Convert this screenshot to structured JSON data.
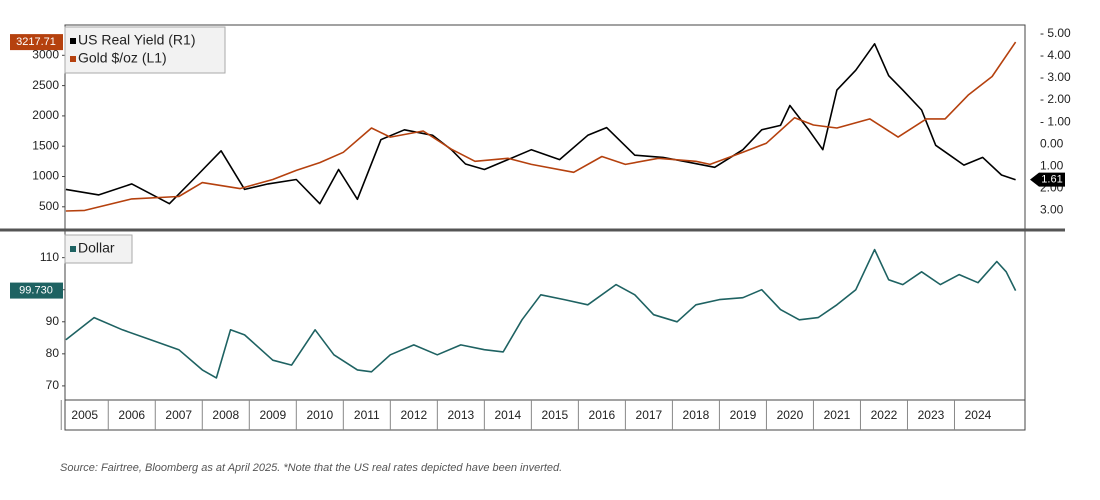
{
  "chart_data": [
    {
      "type": "line",
      "xlim": [
        2005.08,
        2025.5
      ],
      "ylim": [
        150,
        3500
      ],
      "yticks": [
        500,
        1000,
        1500,
        2000,
        2500,
        3000
      ],
      "y2lim": [
        3.8,
        -5.4
      ],
      "y2ticks": [
        {
          "value": -5,
          "label": "- 5.00"
        },
        {
          "value": -4,
          "label": "- 4.00"
        },
        {
          "value": -3,
          "label": "- 3.00"
        },
        {
          "value": -2,
          "label": "- 2.00"
        },
        {
          "value": -1,
          "label": "- 1.00"
        },
        {
          "value": 0,
          "label": "0.00"
        },
        {
          "value": 1,
          "label": "1.00"
        },
        {
          "value": 2,
          "label": "2.00"
        },
        {
          "value": 3,
          "label": "3.00"
        }
      ],
      "series": [
        {
          "name": "US Real Yield (R1)",
          "color": "#000000",
          "axis": "y2",
          "x": [
            2005.1,
            2005.8,
            2006.5,
            2007.3,
            2007.9,
            2008.4,
            2008.9,
            2009.4,
            2010.0,
            2010.5,
            2010.9,
            2011.3,
            2011.8,
            2012.3,
            2012.9,
            2013.3,
            2013.6,
            2014.0,
            2014.5,
            2015.0,
            2015.6,
            2016.2,
            2016.6,
            2017.2,
            2017.8,
            2018.3,
            2018.9,
            2019.5,
            2019.9,
            2020.3,
            2020.5,
            2020.9,
            2021.2,
            2021.5,
            2021.9,
            2022.3,
            2022.6,
            2022.9,
            2023.3,
            2023.6,
            2023.9,
            2024.2,
            2024.6,
            2025.0,
            2025.3
          ],
          "values": [
            2.05,
            2.3,
            1.8,
            2.7,
            1.4,
            0.3,
            2.05,
            1.8,
            1.6,
            2.7,
            1.15,
            2.5,
            -0.2,
            -0.65,
            -0.4,
            0.25,
            0.9,
            1.15,
            0.7,
            0.25,
            0.7,
            -0.4,
            -0.75,
            0.5,
            0.6,
            0.8,
            1.05,
            0.25,
            -0.65,
            -0.85,
            -1.75,
            -0.65,
            0.25,
            -2.45,
            -3.35,
            -4.55,
            -3.1,
            -2.45,
            -1.55,
            0.05,
            0.5,
            0.95,
            0.6,
            1.4,
            1.61
          ]
        },
        {
          "name": "Gold $/oz (L1)",
          "color": "#b5410e",
          "x": [
            2005.1,
            2005.5,
            2006.5,
            2007.5,
            2008.0,
            2008.8,
            2009.5,
            2010.0,
            2010.5,
            2011.0,
            2011.6,
            2012.0,
            2012.7,
            2013.3,
            2013.8,
            2014.5,
            2015.0,
            2015.9,
            2016.5,
            2017.0,
            2017.7,
            2018.5,
            2018.8,
            2019.5,
            2020.0,
            2020.6,
            2021.0,
            2021.5,
            2022.2,
            2022.8,
            2023.4,
            2023.8,
            2024.3,
            2024.8,
            2025.3
          ],
          "values": [
            430,
            440,
            630,
            670,
            900,
            800,
            950,
            1100,
            1230,
            1400,
            1800,
            1650,
            1750,
            1450,
            1250,
            1300,
            1200,
            1070,
            1330,
            1200,
            1300,
            1250,
            1200,
            1400,
            1550,
            1970,
            1850,
            1800,
            1950,
            1650,
            1950,
            1950,
            2350,
            2650,
            3217.71
          ]
        }
      ]
    },
    {
      "type": "line",
      "xlim": [
        2005.08,
        2025.5
      ],
      "xticks": [
        2005,
        2006,
        2007,
        2008,
        2009,
        2010,
        2011,
        2012,
        2013,
        2014,
        2015,
        2016,
        2017,
        2018,
        2019,
        2020,
        2021,
        2022,
        2023,
        2024
      ],
      "ylim": [
        65.6,
        118
      ],
      "yticks": [
        70,
        80,
        90,
        100,
        110
      ],
      "series": [
        {
          "name": "Dollar",
          "color": "#1e6262",
          "x": [
            2005.1,
            2005.7,
            2006.3,
            2006.9,
            2007.5,
            2008.0,
            2008.3,
            2008.6,
            2008.9,
            2009.5,
            2009.9,
            2010.4,
            2010.8,
            2011.3,
            2011.6,
            2012.0,
            2012.5,
            2013.0,
            2013.5,
            2014.0,
            2014.4,
            2014.8,
            2015.2,
            2015.7,
            2016.2,
            2016.8,
            2017.2,
            2017.6,
            2018.1,
            2018.5,
            2019.0,
            2019.5,
            2019.9,
            2020.3,
            2020.7,
            2021.1,
            2021.5,
            2021.9,
            2022.3,
            2022.6,
            2022.9,
            2023.3,
            2023.7,
            2024.1,
            2024.5,
            2024.9,
            2025.1,
            2025.3
          ],
          "values": [
            84.4,
            91.3,
            87.5,
            84.4,
            81.3,
            75,
            72.5,
            87.5,
            85.9,
            78,
            76.5,
            87.5,
            79.7,
            75,
            74.4,
            79.7,
            82.8,
            79.7,
            82.8,
            81.3,
            80.6,
            90.6,
            98.4,
            96.9,
            95.3,
            101.6,
            98.4,
            92.2,
            90,
            95.3,
            96.9,
            97.5,
            100,
            93.8,
            90.6,
            91.3,
            95.3,
            100,
            112.5,
            103.1,
            101.6,
            105.6,
            101.6,
            104.7,
            102.2,
            108.8,
            105.6,
            99.73
          ],
          "value_labels": [
            null,
            null,
            null,
            null,
            null,
            null,
            null,
            null,
            null,
            null,
            null,
            null,
            null,
            null,
            null,
            null,
            null,
            null,
            null,
            null,
            null,
            null,
            null,
            null,
            null,
            null,
            null,
            null,
            null,
            null,
            null,
            null,
            null,
            null,
            null,
            null,
            null,
            null,
            null,
            null,
            null,
            null,
            null,
            null,
            null,
            null,
            null,
            "99.730"
          ]
        }
      ]
    }
  ],
  "footnote": "Source: Fairtree, Bloomberg as at April 2025. *Note that the US real rates depicted have been inverted."
}
